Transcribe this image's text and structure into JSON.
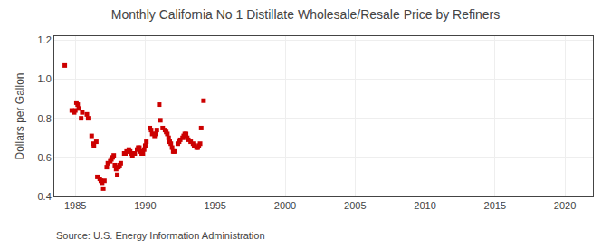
{
  "chart_data": {
    "type": "scatter",
    "title": "Monthly California No 1 Distillate Wholesale/Resale Price by Refiners",
    "ylabel": "Dollars per Gallon",
    "annotations": [
      "Source: U.S. Energy Information Administration"
    ],
    "color": "#cc0000",
    "marker": "square",
    "grid": true,
    "xlim": [
      1983.5,
      2022
    ],
    "ylim": [
      0.4,
      1.22
    ],
    "xticks": [
      1985,
      1990,
      1995,
      2000,
      2005,
      2010,
      2015,
      2020
    ],
    "yticks": [
      0.4,
      0.6,
      0.8,
      {
        "value": 1.0,
        "label": "1.0"
      },
      1.2
    ],
    "x": [
      1984.25,
      1984.75,
      1984.92,
      1985.0,
      1985.08,
      1985.17,
      1985.25,
      1985.42,
      1985.5,
      1985.83,
      1985.92,
      1986.17,
      1986.25,
      1986.33,
      1986.5,
      1986.58,
      1986.75,
      1986.83,
      1986.92,
      1987.0,
      1987.08,
      1987.25,
      1987.33,
      1987.5,
      1987.58,
      1987.67,
      1987.75,
      1987.83,
      1987.92,
      1988.0,
      1988.08,
      1988.17,
      1988.25,
      1988.5,
      1988.58,
      1988.67,
      1988.83,
      1988.92,
      1989.0,
      1989.08,
      1989.25,
      1989.42,
      1989.5,
      1989.58,
      1989.67,
      1989.75,
      1989.83,
      1989.92,
      1990.0,
      1990.08,
      1990.33,
      1990.42,
      1990.5,
      1990.67,
      1990.75,
      1990.83,
      1991.0,
      1991.08,
      1991.25,
      1991.42,
      1991.5,
      1991.58,
      1991.67,
      1991.75,
      1991.83,
      1991.92,
      1992.0,
      1992.08,
      1992.33,
      1992.42,
      1992.5,
      1992.67,
      1992.75,
      1992.83,
      1992.92,
      1993.0,
      1993.08,
      1993.25,
      1993.42,
      1993.5,
      1993.67,
      1993.75,
      1993.83,
      1993.92,
      1994.0,
      1994.17
    ],
    "values": [
      1.07,
      0.84,
      0.83,
      0.84,
      0.88,
      0.87,
      0.85,
      0.8,
      0.83,
      0.82,
      0.8,
      0.71,
      0.67,
      0.66,
      0.68,
      0.5,
      0.49,
      0.48,
      0.47,
      0.44,
      0.48,
      0.55,
      0.57,
      0.58,
      0.59,
      0.6,
      0.61,
      0.56,
      0.54,
      0.51,
      0.55,
      0.56,
      0.57,
      0.62,
      0.62,
      0.63,
      0.64,
      0.63,
      0.62,
      0.61,
      0.62,
      0.64,
      0.65,
      0.65,
      0.63,
      0.62,
      0.62,
      0.64,
      0.66,
      0.68,
      0.75,
      0.74,
      0.72,
      0.71,
      0.72,
      0.74,
      0.87,
      0.79,
      0.75,
      0.74,
      0.73,
      0.72,
      0.7,
      0.68,
      0.67,
      0.65,
      0.63,
      0.63,
      0.67,
      0.68,
      0.69,
      0.7,
      0.71,
      0.72,
      0.72,
      0.7,
      0.69,
      0.68,
      0.67,
      0.66,
      0.65,
      0.65,
      0.66,
      0.67,
      0.75,
      0.89
    ]
  }
}
